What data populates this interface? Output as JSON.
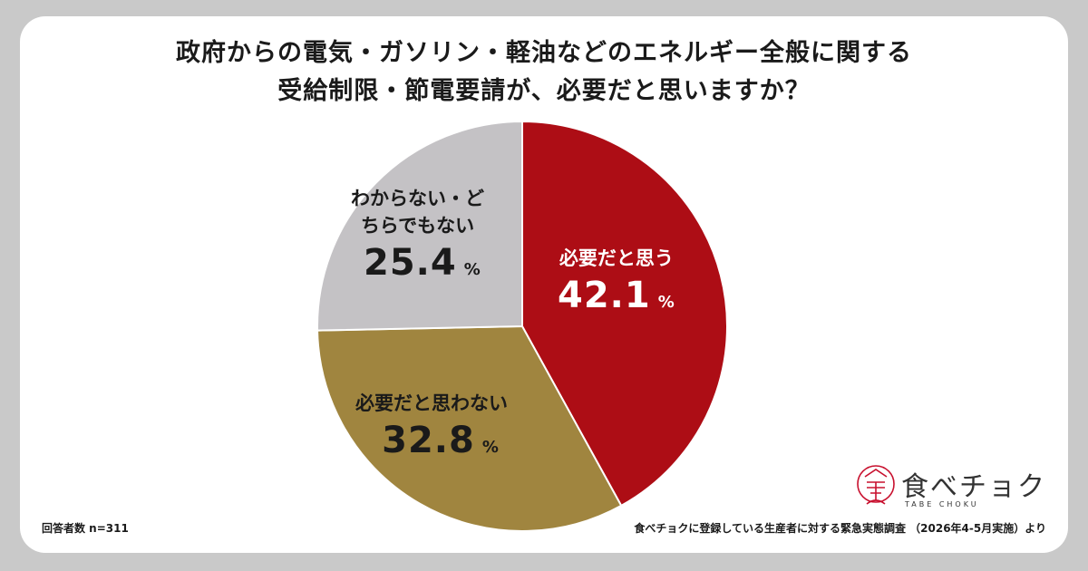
{
  "title_line1": "政府からの電気・ガソリン・軽油などのエネルギー全般に関する",
  "title_line2": "受給制限・節電要請が、必要だと思いますか？",
  "chart_data": {
    "type": "pie",
    "slices": [
      {
        "label": "必要だと思う",
        "value": 42.1,
        "display": "42.1",
        "color": "#ad0d15"
      },
      {
        "label": "必要だと思わない",
        "value": 32.8,
        "display": "32.8",
        "color": "#a0853f"
      },
      {
        "label_line1": "わからない・ど",
        "label_line2": "ちらでもない",
        "value": 25.4,
        "display": "25.4",
        "color": "#c4c2c5"
      }
    ],
    "unit": "%"
  },
  "sample_note": "回答者数 n=311",
  "source_note": "食べチョクに登録している生産者に対する緊急実態調査 （2026年4-5月実施）より",
  "logo": {
    "name": "食べチョク",
    "sub": "TABE CHOKU",
    "color": "#c8102e"
  }
}
